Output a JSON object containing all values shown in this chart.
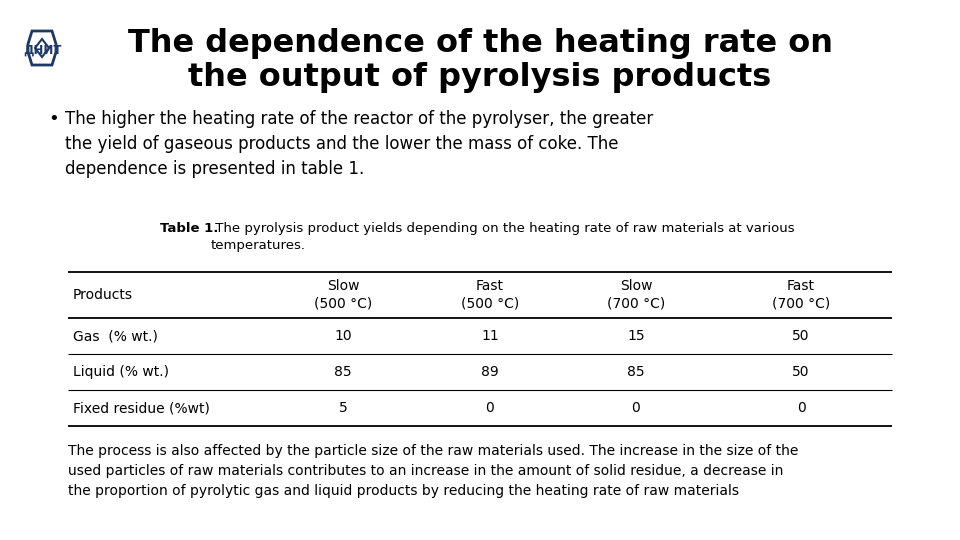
{
  "title_line1": "The dependence of the heating rate on",
  "title_line2": "the output of pyrolysis products",
  "bullet_text": "The higher the heating rate of the reactor of the pyrolyser, the greater\nthe yield of gaseous products and the lower the mass of coke. The\ndependence is presented in table 1.",
  "table_caption_bold": "Table 1.",
  "table_caption_regular": " The pyrolysis product yields depending on the heating rate of raw materials at various\ntemperatures.",
  "table_headers": [
    "Products",
    "Slow\n(500 °C)",
    "Fast\n(500 °C)",
    "Slow\n(700 °C)",
    "Fast\n(700 °C)"
  ],
  "table_rows": [
    [
      "Gas  (% wt.)",
      "10",
      "11",
      "15",
      "50"
    ],
    [
      "Liquid (% wt.)",
      "85",
      "89",
      "85",
      "50"
    ],
    [
      "Fixed residue (%wt)",
      "5",
      "0",
      "0",
      "0"
    ]
  ],
  "footer_text": "The process is also affected by the particle size of the raw materials used. The increase in the size of the\nused particles of raw materials contributes to an increase in the amount of solid residue, a decrease in\nthe proportion of pyrolytic gas and liquid products by reducing the heating rate of raw materials",
  "bg_color": "#ffffff",
  "title_color": "#000000",
  "logo_color": "#1f3864"
}
